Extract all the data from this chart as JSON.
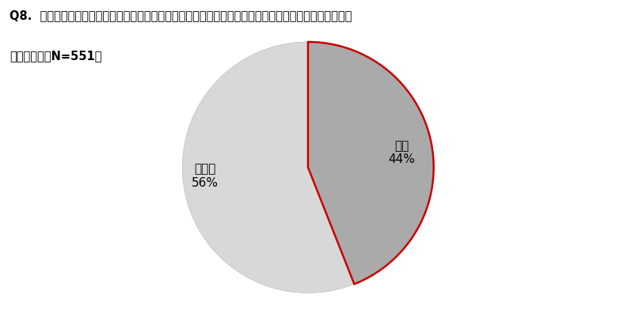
{
  "title_line1": "Q8.  連休明けに体調不良を感じたことがある方に伺います。体調不良により仕事に影響がありましたか。",
  "title_line2": "（単一回答　N=551）",
  "slices": [
    {
      "label": "はい\n44%",
      "pct": 44,
      "color": "#aaaaaa"
    },
    {
      "label": "いいえ\n56%",
      "pct": 56,
      "color": "#d8d8d8"
    }
  ],
  "hai_edge_color": "#cc0000",
  "iie_edge_color": "#d8d8d8",
  "background_color": "#ffffff",
  "title_fontsize": 10.5,
  "label_fontsize": 11,
  "startangle": 90
}
